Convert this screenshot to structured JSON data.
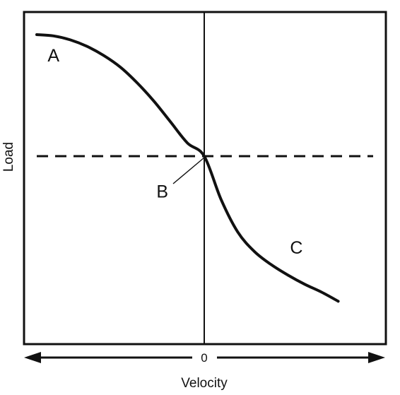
{
  "chart_data": {
    "type": "line",
    "title": "",
    "xlabel": "Velocity",
    "ylabel": "Load",
    "x_tick_labels": [
      "0"
    ],
    "xlim": [
      -1,
      1
    ],
    "ylim": [
      -1,
      1
    ],
    "grid": false,
    "legend": "none",
    "x_axis_arrows": "both directions",
    "reference_line": {
      "style": "dashed",
      "y": 0
    },
    "series": [
      {
        "x": [
          -1.0,
          -0.9,
          -0.8,
          -0.7,
          -0.6,
          -0.5,
          -0.4,
          -0.3,
          -0.2,
          -0.1,
          0.0,
          0.1,
          0.2,
          0.3,
          0.4,
          0.5,
          0.6,
          0.7,
          0.8
        ],
        "y": [
          0.93,
          0.92,
          0.89,
          0.84,
          0.77,
          0.68,
          0.56,
          0.42,
          0.26,
          0.1,
          0.0,
          -0.33,
          -0.58,
          -0.73,
          -0.83,
          -0.91,
          -0.98,
          -1.04,
          -1.11
        ],
        "color": "#111111"
      }
    ],
    "annotations": [
      {
        "text": "A",
        "x": -0.9,
        "y": 0.76
      },
      {
        "text": "B",
        "x": -0.25,
        "y": -0.28
      },
      {
        "text": "C",
        "x": 0.55,
        "y": -0.71
      }
    ]
  }
}
